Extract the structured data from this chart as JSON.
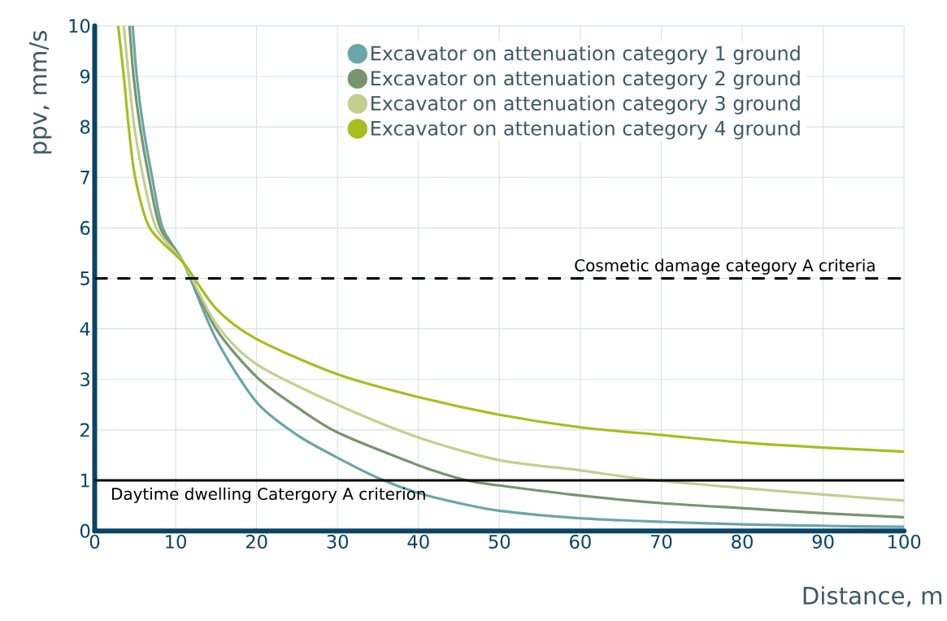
{
  "chart_data": {
    "type": "line",
    "xlabel": "Distance, m",
    "ylabel": "ppv, mm/s",
    "xlim": [
      0,
      100
    ],
    "ylim": [
      0,
      10
    ],
    "xticks": [
      0,
      10,
      20,
      30,
      40,
      50,
      60,
      70,
      80,
      90,
      100
    ],
    "yticks": [
      0,
      1,
      2,
      3,
      4,
      5,
      6,
      7,
      8,
      9,
      10
    ],
    "grid": true,
    "legend": "top right",
    "line_style": "solid",
    "series": [
      {
        "name": "Excavator on attenuation category 1 ground",
        "color": "#6aa5a9",
        "x": [
          4.7,
          5.2,
          6,
          7.1,
          8.4,
          11,
          15,
          20,
          25,
          30,
          35,
          40,
          45,
          50,
          60,
          70,
          80,
          90,
          100
        ],
        "values": [
          10,
          9,
          8,
          7,
          6,
          5.3,
          3.8,
          2.55,
          1.9,
          1.45,
          1.05,
          0.75,
          0.55,
          0.4,
          0.25,
          0.18,
          0.13,
          0.1,
          0.08
        ]
      },
      {
        "name": "Excavator on attenuation category 2 ground",
        "color": "#77956d",
        "x": [
          4.3,
          4.8,
          5.6,
          6.7,
          8.1,
          11,
          15,
          20,
          25,
          30,
          40,
          46,
          50,
          60,
          70,
          80,
          90,
          100
        ],
        "values": [
          10,
          9,
          8,
          7,
          6,
          5.3,
          4.0,
          3.05,
          2.45,
          1.95,
          1.3,
          1.0,
          0.9,
          0.7,
          0.55,
          0.45,
          0.35,
          0.27
        ]
      },
      {
        "name": "Excavator on attenuation category 3 ground",
        "color": "#c3cf8e",
        "x": [
          3.6,
          4.2,
          4.9,
          6,
          7.6,
          11,
          15,
          20,
          30,
          40,
          50,
          60,
          68,
          80,
          90,
          100
        ],
        "values": [
          10,
          9,
          8,
          7,
          6,
          5.3,
          4.1,
          3.3,
          2.5,
          1.85,
          1.4,
          1.2,
          1.02,
          0.85,
          0.72,
          0.6
        ]
      },
      {
        "name": "Excavator on attenuation category 4 ground",
        "color": "#a8bd1e",
        "x": [
          2.9,
          3.6,
          4.2,
          5,
          6.8,
          11,
          15,
          20,
          30,
          40,
          50,
          60,
          70,
          80,
          90,
          100
        ],
        "values": [
          10,
          9,
          8,
          7,
          6,
          5.3,
          4.4,
          3.8,
          3.1,
          2.65,
          2.3,
          2.05,
          1.9,
          1.75,
          1.65,
          1.57
        ]
      }
    ],
    "ref_lines": [
      {
        "axis": "y",
        "value": 5,
        "label": "Cosmetic damage category A criteria",
        "color": "#000000",
        "line_style": "dashed"
      },
      {
        "axis": "y",
        "value": 1,
        "label": "Daytime dwelling Catergory A criterion",
        "color": "#000000",
        "line_style": "solid"
      }
    ]
  }
}
